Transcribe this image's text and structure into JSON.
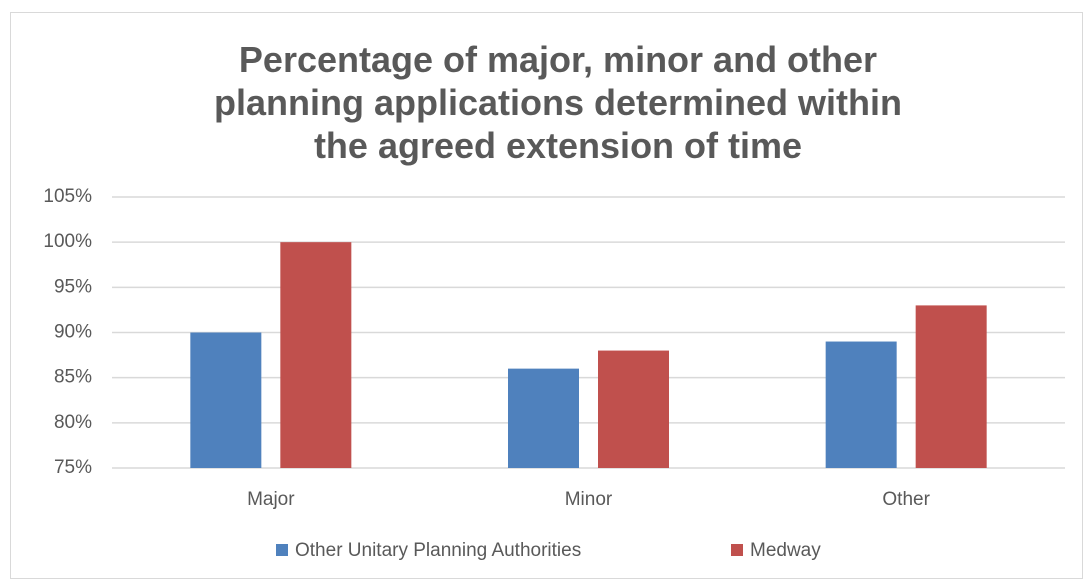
{
  "chart_data": {
    "type": "bar",
    "title": "Percentage of major, minor and other planning applications determined within the agreed extension of time",
    "categories": [
      "Major",
      "Minor",
      "Other"
    ],
    "series": [
      {
        "name": "Other Unitary Planning Authorities",
        "color": "#4f81bd",
        "values": [
          90,
          86,
          89
        ]
      },
      {
        "name": "Medway",
        "color": "#c0504d",
        "values": [
          100,
          88,
          93
        ]
      }
    ],
    "ylim": [
      75,
      105
    ],
    "yticks": [
      {
        "value": 75,
        "label": "75%"
      },
      {
        "value": 80,
        "label": "80%"
      },
      {
        "value": 85,
        "label": "85%"
      },
      {
        "value": 90,
        "label": "90%"
      },
      {
        "value": 95,
        "label": "95%"
      },
      {
        "value": 100,
        "label": "100%"
      },
      {
        "value": 105,
        "label": "105%"
      }
    ],
    "grid": true,
    "legend": "bottom"
  }
}
